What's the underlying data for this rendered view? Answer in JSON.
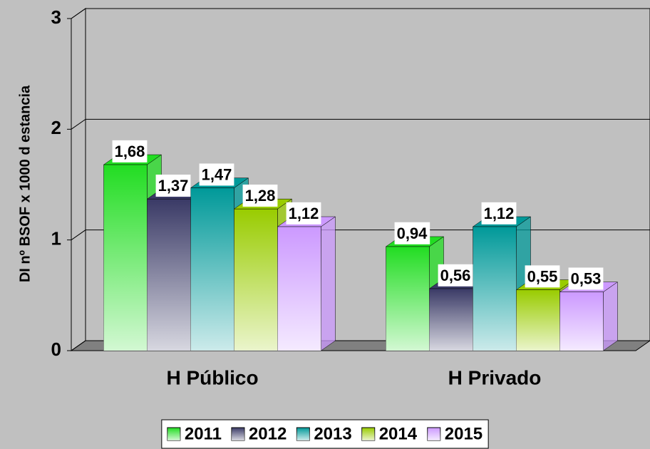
{
  "chart_data": {
    "type": "bar3d",
    "y_label": "DI nº BSOF x 1000 d estancia",
    "categories": [
      "H Público",
      "H Privado"
    ],
    "series": [
      {
        "name": "2011",
        "color": "#22dd22",
        "values": [
          1.68,
          0.94
        ],
        "value_labels": [
          "1,68",
          "0,94"
        ]
      },
      {
        "name": "2012",
        "color": "#3a3a66",
        "values": [
          1.37,
          0.56
        ],
        "value_labels": [
          "1,37",
          "0,56"
        ]
      },
      {
        "name": "2013",
        "color": "#009999",
        "values": [
          1.47,
          1.12
        ],
        "value_labels": [
          "1,47",
          "1,12"
        ]
      },
      {
        "name": "2014",
        "color": "#99cc00",
        "values": [
          1.28,
          0.55
        ],
        "value_labels": [
          "1,28",
          "0,55"
        ]
      },
      {
        "name": "2015",
        "color": "#cc99ff",
        "values": [
          1.12,
          0.53
        ],
        "value_labels": [
          "1,12",
          "0,53"
        ]
      }
    ],
    "ylim": [
      0,
      3
    ],
    "yticks": [
      0,
      1,
      2,
      3
    ],
    "grid": true,
    "legend": "bottom"
  }
}
